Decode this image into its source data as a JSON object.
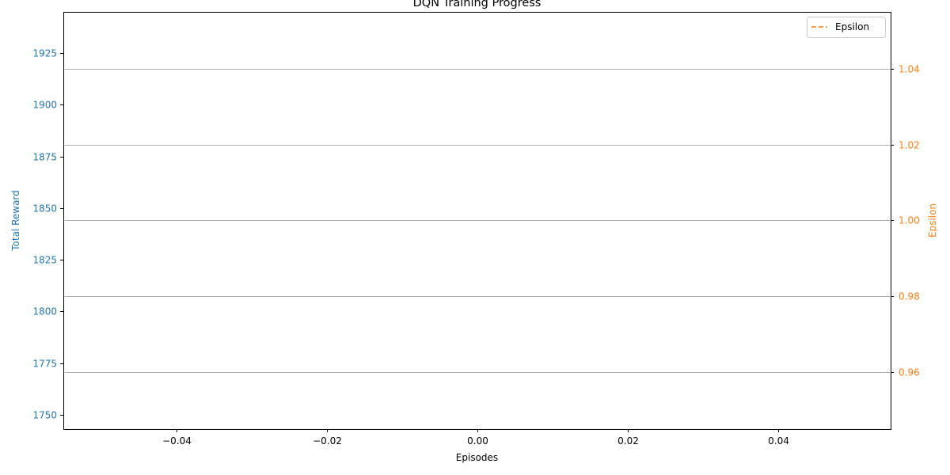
{
  "chart_data": {
    "type": "line",
    "title": "DQN Training Progress",
    "xlabel": "Episodes",
    "x_ticks": [
      -0.04,
      -0.02,
      0.0,
      0.02,
      0.04
    ],
    "x_tick_labels": [
      "−0.04",
      "−0.02",
      "0.00",
      "0.02",
      "0.04"
    ],
    "xlim": [
      -0.055,
      0.055
    ],
    "grid": "horizontal",
    "y_left": {
      "label": "Total Reward",
      "color": "#1f77b4",
      "ticks": [
        1750,
        1775,
        1800,
        1825,
        1850,
        1875,
        1900,
        1925
      ],
      "tick_labels": [
        "1750",
        "1775",
        "1800",
        "1825",
        "1850",
        "1875",
        "1900",
        "1925"
      ],
      "ylim": [
        1743,
        1945
      ]
    },
    "y_right": {
      "label": "Epsilon",
      "color": "#ff7f0e",
      "ticks": [
        0.96,
        0.98,
        1.0,
        1.02,
        1.04
      ],
      "tick_labels": [
        "0.96",
        "0.98",
        "1.00",
        "1.02",
        "1.04"
      ],
      "ylim": [
        0.945,
        1.055
      ]
    },
    "series": [
      {
        "name": "Epsilon",
        "axis": "right",
        "color": "#ff7f0e",
        "style": "dashed",
        "x": [],
        "y": []
      }
    ],
    "legend": {
      "position": "top-right",
      "entries": [
        "Epsilon"
      ]
    }
  }
}
